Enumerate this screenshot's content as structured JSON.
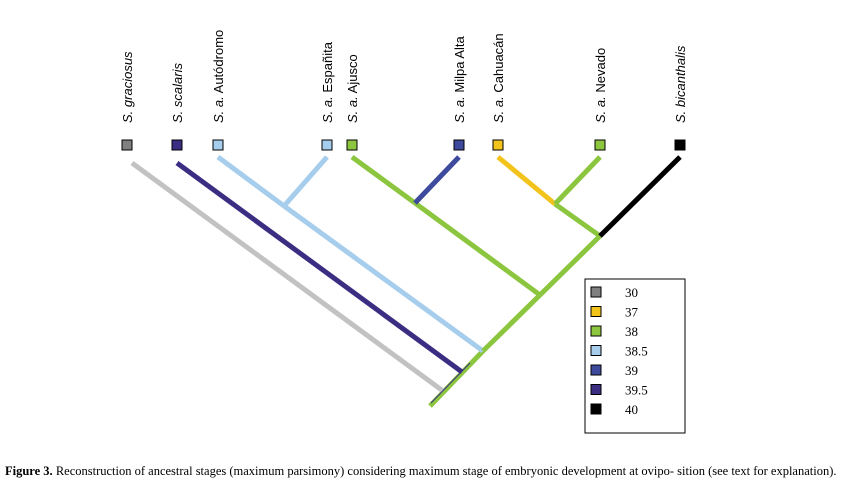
{
  "taxa": [
    {
      "genus": "S.",
      "name": "graciosus",
      "italic_name": true,
      "state": "30"
    },
    {
      "genus": "S.",
      "name": "scalaris",
      "italic_name": true,
      "state": "39.5"
    },
    {
      "genus": "S.",
      "subsp": "a.",
      "name": "Autódromo",
      "italic_name": false,
      "state": "38.5"
    },
    {
      "genus": "S.",
      "subsp": "a.",
      "name": "Españita",
      "italic_name": false,
      "state": "38.5"
    },
    {
      "genus": "S.",
      "subsp": "a.",
      "name": "Ajusco",
      "italic_name": false,
      "state": "38"
    },
    {
      "genus": "S.",
      "subsp": "a.",
      "name": "Milpa Alta",
      "italic_name": false,
      "state": "39"
    },
    {
      "genus": "S.",
      "subsp": "a.",
      "name": "Cahuacán",
      "italic_name": false,
      "state": "37"
    },
    {
      "genus": "S.",
      "subsp": "a.",
      "name": "Nevado",
      "italic_name": false,
      "state": "38"
    },
    {
      "genus": "S.",
      "name": "bicanthalis",
      "italic_name": true,
      "state": "40"
    }
  ],
  "legend": [
    {
      "label": "30",
      "color": "#808080"
    },
    {
      "label": "37",
      "color": "#f2c31b"
    },
    {
      "label": "38",
      "color": "#8cc63f"
    },
    {
      "label": "38.5",
      "color": "#a6cdec"
    },
    {
      "label": "39",
      "color": "#3e4a9c"
    },
    {
      "label": "39.5",
      "color": "#3b2e82"
    },
    {
      "label": "40",
      "color": "#000000"
    }
  ],
  "branch_colors": {
    "graciosus": "#c2c2c2",
    "scalaris": "#3b2e82",
    "autodromo_espanita": "#a6cdec",
    "ajusco_clade": "#8cc63f",
    "milpa_alta": "#3e4a9c",
    "cahuacan": "#f2c31b",
    "bicanthalis": "#000000",
    "root": "#8cc63f"
  },
  "caption": {
    "label": "Figure 3.",
    "text": " Reconstruction of ancestral stages (maximum parsimony) considering maximum stage of embryonic development at ovipo- sition (see text for explanation)."
  }
}
